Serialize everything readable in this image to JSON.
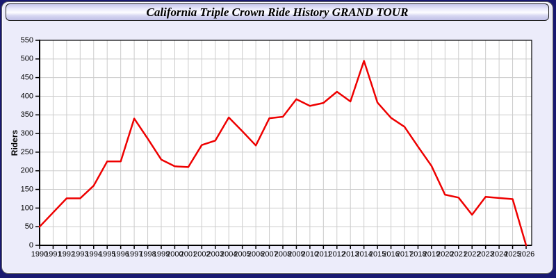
{
  "window": {
    "title": "California Triple Crown Ride History GRAND TOUR"
  },
  "colors": {
    "page_background": "#191970",
    "panel_background": "#ECECFA",
    "plot_background": "#FFFFFF",
    "grid_color": "#CCCCCC",
    "axis_color": "#000000",
    "line_color": "#EE0000",
    "titlebar_gradient_top": "#C7C7EC",
    "titlebar_gradient_bottom": "#BFBFE6"
  },
  "chart_data": {
    "type": "line",
    "title": "California Triple Crown Ride History GRAND TOUR",
    "xlabel": "",
    "ylabel": "Riders",
    "grid": true,
    "legend_position": "none",
    "ylim": [
      0,
      550
    ],
    "ytick_step": 50,
    "yticks": [
      0,
      50,
      100,
      150,
      200,
      250,
      300,
      350,
      400,
      450,
      500,
      550
    ],
    "x": [
      1990,
      1991,
      1992,
      1993,
      1994,
      1995,
      1996,
      1997,
      1998,
      1999,
      2000,
      2001,
      2002,
      2003,
      2004,
      2005,
      2006,
      2007,
      2008,
      2009,
      2010,
      2011,
      2012,
      2013,
      2014,
      2015,
      2016,
      2017,
      2018,
      2019,
      2020,
      2021,
      2022,
      2023,
      2024,
      2025,
      2026
    ],
    "series": [
      {
        "name": "Riders",
        "color": "#EE0000",
        "values": [
          50,
          88,
          126,
          126,
          160,
          225,
          225,
          340,
          286,
          230,
          212,
          210,
          269,
          281,
          343,
          306,
          268,
          341,
          345,
          392,
          374,
          382,
          412,
          386,
          495,
          383,
          342,
          318,
          265,
          213,
          136,
          128,
          82,
          130,
          127,
          124,
          0
        ]
      }
    ]
  }
}
